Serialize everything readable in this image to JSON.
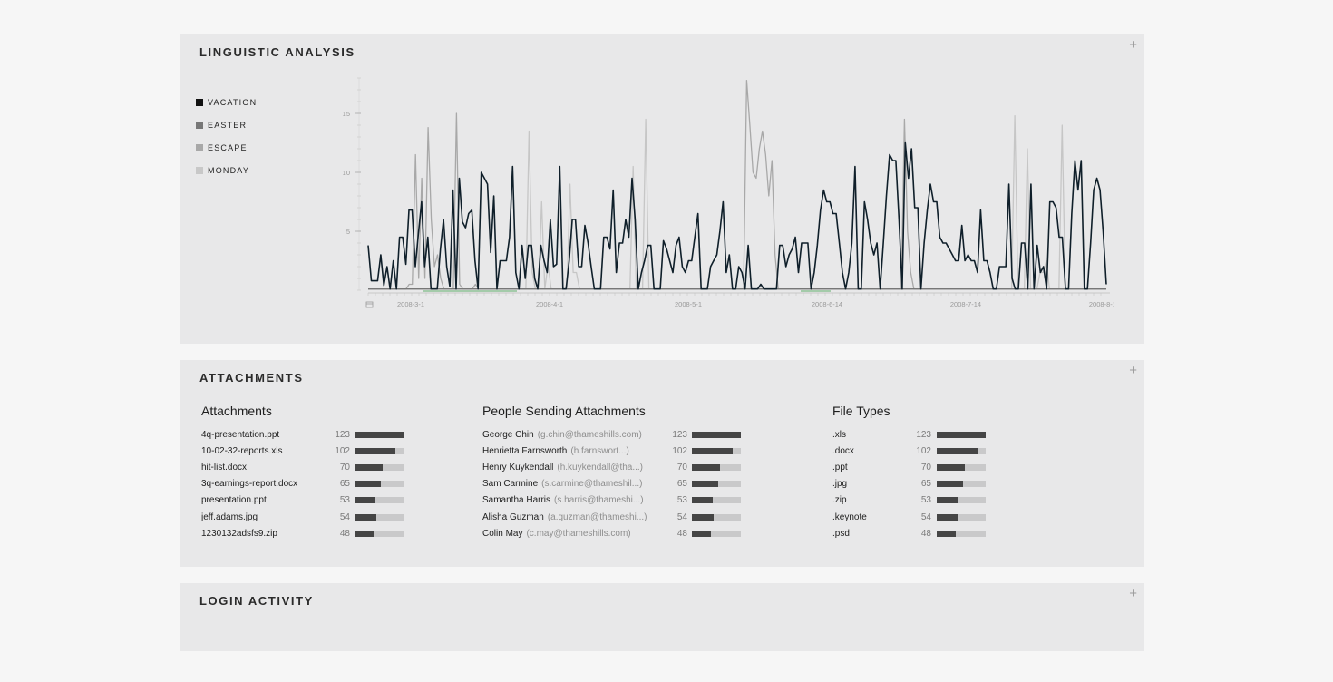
{
  "panels": {
    "linguistic": {
      "title": "LINGUISTIC ANALYSIS",
      "expand": "+"
    },
    "attachments": {
      "title": "ATTACHMENTS",
      "expand": "+"
    },
    "login": {
      "title": "LOGIN ACTIVITY",
      "expand": "+"
    }
  },
  "legend": [
    {
      "label": "VACATION",
      "color": "#111111"
    },
    {
      "label": "EASTER",
      "color": "#777777"
    },
    {
      "label": "ESCAPE",
      "color": "#a8a8a8"
    },
    {
      "label": "MONDAY",
      "color": "#c8c8c8"
    }
  ],
  "chart_data": {
    "type": "line",
    "xlabels": [
      "2008-3-1",
      "2008-4-1",
      "2008-5-1",
      "2008-6-14",
      "2008-7-14",
      "2008-8-14"
    ],
    "ytick_labels": [
      "15",
      "10",
      "5"
    ],
    "ylim": [
      0,
      18
    ],
    "series": [
      {
        "name": "VACATION",
        "color": "#0f1f2a",
        "values": [
          3.8,
          0.8,
          0.8,
          0.8,
          3.0,
          0.4,
          2.0,
          0.1,
          2.5,
          0.1,
          4.5,
          4.5,
          2.2,
          6.8,
          6.8,
          2.0,
          4.8,
          7.5,
          2.0,
          4.5,
          0.1,
          0.1,
          0.1,
          3.5,
          6.0,
          2.0,
          0.3,
          8.5,
          0.1,
          9.5,
          5.8,
          5.3,
          6.5,
          6.8,
          2.5,
          0.1,
          10.0,
          9.5,
          9.0,
          3.2,
          8.0,
          0.1,
          2.5,
          2.5,
          2.5,
          4.5,
          10.5,
          1.5,
          0.1,
          3.8,
          1.0,
          3.8,
          3.8,
          1.0,
          0.1,
          3.8,
          2.5,
          1.5,
          6.0,
          2.0,
          2.2,
          10.5,
          0.1,
          0.1,
          2.5,
          6.0,
          6.0,
          2.0,
          2.0,
          5.5,
          4.0,
          2.0,
          0.1,
          0.1,
          0.1,
          4.5,
          4.5,
          3.5,
          8.5,
          1.5,
          4.0,
          4.0,
          6.0,
          4.5,
          9.5,
          6.0,
          0.1,
          1.5,
          2.5,
          3.8,
          3.8,
          0.1,
          0.1,
          0.1,
          4.2,
          3.5,
          2.5,
          1.5,
          3.8,
          4.5,
          2.0,
          1.5,
          2.5,
          2.5,
          4.5,
          6.5,
          0.1,
          0.1,
          0.1,
          2.0,
          2.5,
          3.0,
          5.0,
          7.5,
          1.5,
          3.0,
          0.1,
          0.1,
          2.0,
          1.5,
          0.1,
          3.8,
          0.1,
          0.1,
          0.1,
          0.5,
          0.1,
          0.1,
          0.1,
          0.1,
          0.1,
          3.8,
          3.8,
          2.0,
          3.0,
          3.5,
          4.5,
          1.5,
          4.0,
          4.0,
          4.0,
          0.1,
          1.5,
          3.8,
          6.8,
          8.5,
          7.5,
          7.5,
          6.5,
          6.5,
          4.0,
          1.5,
          0.1,
          1.5,
          4.0,
          10.5,
          0.1,
          0.1,
          7.5,
          6.0,
          4.0,
          3.0,
          4.0,
          0.1,
          4.0,
          8.0,
          11.5,
          11.0,
          11.0,
          6.0,
          0.1,
          12.5,
          9.5,
          12.0,
          7.0,
          7.0,
          0.1,
          4.0,
          6.8,
          9.0,
          7.5,
          7.5,
          4.5,
          4.0,
          4.0,
          3.5,
          3.0,
          2.5,
          2.5,
          5.5,
          2.5,
          3.0,
          2.5,
          2.5,
          1.5,
          6.8,
          2.5,
          2.5,
          1.5,
          0.1,
          0.1,
          2.0,
          2.0,
          2.0,
          9.0,
          1.0,
          0.1,
          0.1,
          4.0,
          4.0,
          0.1,
          9.0,
          0.1,
          3.8,
          1.5,
          2.0,
          0.1,
          7.5,
          7.5,
          7.0,
          4.5,
          4.5,
          0.1,
          0.1,
          6.5,
          11.0,
          8.5,
          11.0,
          0.1,
          0.1,
          4.0,
          8.5,
          9.5,
          8.5,
          5.0,
          0.5
        ]
      },
      {
        "name": "EASTER",
        "color": "#777777",
        "values": [
          0.1,
          0.1,
          0.1,
          0.1,
          0.1,
          0.1,
          0.1,
          0.1,
          0.1,
          0.1,
          0.1,
          0.1,
          0.1,
          0.1,
          0.1,
          0.1,
          0.1,
          0.1,
          0.1,
          0.1,
          0.1,
          0.1,
          0.1,
          0.1,
          0.1,
          0.1,
          0.1,
          0.1,
          0.1,
          0.1,
          0.1,
          0.1,
          0.1,
          0.1,
          0.1,
          0.1,
          0.1,
          0.1,
          0.1,
          0.1,
          0.1,
          0.1,
          0.1,
          0.1,
          0.1,
          0.1,
          0.1,
          0.1,
          0.1,
          0.1,
          0.1,
          0.1,
          0.1,
          0.1,
          0.1,
          0.1,
          0.1,
          0.1,
          0.1,
          0.1,
          0.1,
          0.1,
          0.1,
          0.1,
          0.1,
          0.1,
          0.1,
          0.1,
          0.1,
          0.1,
          0.1,
          0.1,
          0.1,
          0.1,
          0.1,
          0.1,
          0.1,
          0.1,
          0.1,
          0.1,
          0.1,
          0.1,
          0.1,
          0.1,
          0.1,
          0.1,
          0.1,
          0.1,
          0.1,
          0.1,
          0.1,
          0.1,
          0.1,
          0.1,
          0.1,
          0.1,
          0.1,
          0.1,
          0.1,
          0.1,
          0.1,
          0.1,
          0.1,
          0.1,
          0.1,
          0.1,
          0.1,
          0.1,
          0.1,
          0.1,
          0.1,
          0.1,
          0.1,
          0.1,
          0.1,
          0.1,
          0.1,
          0.1,
          0.1,
          0.1,
          0.1,
          0.1,
          0.1,
          0.1,
          0.1,
          0.1,
          0.1,
          0.1,
          0.1,
          0.1,
          0.1,
          0.1,
          0.1,
          0.1,
          0.1,
          0.1,
          0.1,
          0.1,
          0.1,
          0.1,
          0.1,
          0.1,
          0.1,
          0.1,
          0.1,
          0.1,
          0.1,
          0.1,
          0.1,
          0.1,
          0.1,
          0.1,
          0.1,
          0.1,
          0.1,
          0.1,
          0.1,
          0.1,
          0.1,
          0.1,
          0.1,
          0.1,
          0.1,
          0.1,
          0.1,
          0.1,
          0.1,
          0.1,
          0.1,
          0.1,
          0.1,
          0.1,
          0.1,
          0.1,
          0.1,
          0.1,
          0.1,
          0.1,
          0.1,
          0.1,
          0.1,
          0.1,
          0.1,
          0.1,
          0.1,
          0.1,
          0.1,
          0.1,
          0.1,
          0.1,
          0.1,
          0.1,
          0.1,
          0.1,
          0.1,
          0.1,
          0.1,
          0.1,
          0.1,
          0.1,
          0.1,
          0.1,
          0.1,
          0.1,
          0.1,
          0.1,
          0.1,
          0.1,
          0.1,
          0.1,
          0.1,
          0.1,
          0.1,
          0.1,
          0.1,
          0.1,
          0.1,
          0.1,
          0.1,
          0.1,
          0.1,
          0.1,
          0.1,
          0.1,
          0.1,
          0.1,
          0.1,
          0.1,
          0.1,
          0.1,
          0.1,
          0.1,
          0.1,
          0.1,
          0.1,
          0.1,
          0.1,
          0.1,
          0.1
        ]
      },
      {
        "name": "ESCAPE",
        "color": "#a8a8a8",
        "values": [
          0.1,
          0.1,
          0.1,
          0.1,
          0.1,
          0.1,
          0.1,
          0.1,
          0.1,
          0.1,
          0.1,
          0.1,
          0.1,
          0.5,
          0.5,
          11.5,
          1.0,
          9.5,
          1.0,
          13.8,
          6.0,
          2.0,
          3.0,
          1.0,
          0.1,
          0.1,
          0.1,
          0.1,
          15.0,
          0.5,
          0.1,
          0.1,
          0.1,
          0.1,
          0.5,
          0.1,
          0.1,
          0.1,
          0.1,
          0.1,
          0.1,
          0.1,
          0.1,
          0.1,
          0.1,
          0.1,
          0.1,
          0.1,
          0.1,
          0.1,
          0.1,
          0.1,
          0.1,
          0.1,
          0.1,
          0.1,
          0.1,
          0.1,
          0.1,
          0.1,
          0.1,
          0.1,
          0.1,
          0.1,
          0.1,
          0.1,
          0.1,
          0.1,
          0.1,
          0.1,
          0.1,
          0.1,
          0.1,
          0.1,
          0.1,
          0.1,
          0.1,
          0.1,
          0.1,
          0.1,
          0.1,
          0.1,
          0.1,
          0.1,
          0.1,
          0.1,
          0.1,
          0.1,
          0.1,
          0.1,
          0.1,
          0.1,
          0.1,
          0.1,
          0.1,
          0.1,
          0.1,
          0.1,
          0.1,
          0.1,
          0.1,
          0.1,
          0.1,
          0.1,
          0.1,
          0.1,
          0.1,
          0.1,
          0.1,
          0.1,
          0.1,
          0.1,
          0.1,
          0.1,
          0.1,
          0.1,
          0.1,
          0.1,
          0.1,
          0.1,
          17.8,
          14.0,
          10.0,
          9.5,
          12.0,
          13.5,
          11.5,
          8.0,
          11.0,
          3.0,
          0.1,
          0.1,
          0.1,
          0.1,
          0.1,
          0.1,
          0.1,
          0.1,
          0.1,
          0.1,
          0.1,
          0.1,
          0.1,
          0.1,
          0.1,
          0.1,
          0.1,
          0.1,
          0.1,
          0.1,
          0.1,
          0.1,
          0.1,
          0.1,
          0.1,
          0.1,
          0.1,
          0.1,
          0.1,
          0.1,
          0.1,
          0.1,
          0.1,
          0.1,
          0.1,
          0.1,
          0.1,
          0.1,
          0.1,
          0.1,
          14.5,
          5.0,
          1.5,
          0.1,
          0.1,
          0.1,
          0.1,
          0.1,
          0.1,
          0.1,
          0.1,
          0.1,
          0.1,
          0.1,
          0.1,
          0.1,
          0.1,
          0.1,
          0.1,
          0.1,
          0.1,
          0.1,
          0.1,
          0.1,
          0.1,
          0.1,
          0.1,
          0.1,
          0.1,
          0.1,
          0.1,
          0.1,
          0.1,
          0.1,
          0.1,
          0.1,
          0.1,
          0.1,
          0.1,
          0.1,
          0.1,
          0.1,
          0.1,
          0.1,
          0.1,
          0.1,
          0.1,
          0.1,
          0.1,
          0.1,
          0.1,
          0.1,
          0.1,
          0.1,
          0.1,
          0.1,
          0.1,
          0.1,
          0.1,
          0.1,
          0.1,
          0.1,
          0.1,
          0.1,
          0.1
        ]
      },
      {
        "name": "MONDAY",
        "color": "#c6c6c6",
        "values": [
          0.1,
          0.1,
          0.1,
          0.1,
          0.1,
          0.1,
          0.1,
          0.1,
          0.1,
          0.1,
          0.1,
          0.1,
          0.1,
          0.1,
          0.1,
          0.1,
          0.1,
          0.1,
          0.1,
          0.1,
          0.1,
          0.1,
          0.1,
          0.1,
          0.1,
          0.1,
          0.1,
          0.1,
          0.1,
          0.1,
          0.1,
          0.1,
          0.1,
          0.1,
          0.1,
          0.1,
          0.1,
          0.1,
          0.1,
          0.1,
          0.1,
          0.1,
          0.1,
          0.1,
          0.1,
          0.1,
          0.1,
          0.1,
          0.1,
          0.1,
          0.1,
          13.5,
          1.5,
          0.1,
          0.1,
          7.5,
          0.1,
          2.2,
          0.1,
          0.1,
          0.1,
          0.1,
          0.1,
          0.1,
          9.0,
          1.5,
          1.5,
          0.1,
          0.1,
          0.1,
          0.1,
          0.1,
          0.1,
          0.1,
          0.1,
          0.1,
          0.1,
          0.1,
          0.1,
          0.1,
          0.1,
          0.1,
          0.1,
          0.1,
          10.5,
          0.1,
          0.1,
          0.1,
          14.5,
          0.1,
          0.1,
          0.1,
          0.1,
          0.1,
          0.1,
          0.1,
          0.1,
          0.1,
          0.1,
          0.1,
          0.1,
          0.1,
          0.1,
          0.1,
          0.1,
          0.1,
          0.1,
          0.1,
          0.1,
          0.1,
          0.1,
          0.1,
          0.1,
          0.1,
          0.1,
          0.1,
          0.1,
          0.1,
          0.1,
          0.1,
          0.1,
          0.1,
          0.1,
          0.1,
          0.1,
          0.1,
          0.1,
          0.1,
          0.1,
          0.1,
          0.1,
          0.1,
          0.1,
          0.1,
          0.1,
          0.1,
          0.1,
          0.1,
          0.1,
          0.1,
          0.1,
          0.1,
          0.1,
          0.1,
          0.1,
          0.1,
          0.1,
          0.1,
          0.1,
          0.1,
          0.1,
          0.1,
          0.1,
          0.1,
          0.1,
          0.1,
          0.1,
          0.1,
          0.1,
          0.1,
          0.1,
          0.1,
          0.1,
          0.1,
          0.1,
          0.1,
          0.1,
          0.1,
          0.1,
          0.1,
          0.1,
          0.1,
          0.1,
          0.1,
          0.1,
          0.1,
          0.1,
          0.1,
          0.1,
          0.1,
          0.1,
          0.1,
          0.1,
          0.1,
          0.1,
          0.1,
          0.1,
          0.1,
          0.1,
          0.1,
          0.1,
          0.1,
          0.1,
          0.1,
          0.1,
          0.1,
          0.1,
          0.1,
          0.1,
          0.1,
          0.1,
          0.1,
          0.1,
          0.1,
          0.1,
          14.8,
          0.1,
          0.1,
          0.1,
          12.0,
          0.1,
          0.1,
          0.1,
          1.5,
          1.5,
          2.5,
          0.1,
          0.1,
          0.1,
          0.1,
          14.0,
          0.1,
          0.1,
          0.1,
          0.1,
          0.1,
          0.1,
          0.1,
          0.1,
          0.1,
          0.1,
          0.1,
          0.1,
          0.1,
          0.1
        ]
      }
    ]
  },
  "attachments": {
    "columns": [
      {
        "title": "Attachments",
        "rows": [
          {
            "name": "4q-presentation.ppt",
            "count": "123",
            "value": 123
          },
          {
            "name": "10-02-32-reports.xls",
            "count": "102",
            "value": 102
          },
          {
            "name": "hit-list.docx",
            "count": "70",
            "value": 70
          },
          {
            "name": "3q-earnings-report.docx",
            "count": "65",
            "value": 65
          },
          {
            "name": "presentation.ppt",
            "count": "53",
            "value": 53
          },
          {
            "name": "jeff.adams.jpg",
            "count": "54",
            "value": 54
          },
          {
            "name": "1230132adsfs9.zip",
            "count": "48",
            "value": 48
          }
        ]
      },
      {
        "title": "People Sending Attachments",
        "rows": [
          {
            "name": "George Chin",
            "email": "(g.chin@thameshills.com)",
            "count": "123",
            "value": 123
          },
          {
            "name": "Henrietta Farnsworth",
            "email": "(h.farnswort...)",
            "count": "102",
            "value": 102
          },
          {
            "name": "Henry Kuykendall",
            "email": "(h.kuykendall@tha...)",
            "count": "70",
            "value": 70
          },
          {
            "name": "Sam Carmine",
            "email": "(s.carmine@thameshil...)",
            "count": "65",
            "value": 65
          },
          {
            "name": "Samantha Harris",
            "email": "(s.harris@thameshi...)",
            "count": "53",
            "value": 53
          },
          {
            "name": "Alisha Guzman",
            "email": "(a.guzman@thameshi...)",
            "count": "54",
            "value": 54
          },
          {
            "name": "Colin May",
            "email": "(c.may@thameshills.com)",
            "count": "48",
            "value": 48
          }
        ]
      },
      {
        "title": "File Types",
        "rows": [
          {
            "name": ".xls",
            "count": "123",
            "value": 123
          },
          {
            "name": ".docx",
            "count": "102",
            "value": 102
          },
          {
            "name": ".ppt",
            "count": "70",
            "value": 70
          },
          {
            "name": ".jpg",
            "count": "65",
            "value": 65
          },
          {
            "name": ".zip",
            "count": "53",
            "value": 53
          },
          {
            "name": ".keynote",
            "count": "54",
            "value": 54
          },
          {
            "name": ".psd",
            "count": "48",
            "value": 48
          }
        ]
      }
    ]
  }
}
